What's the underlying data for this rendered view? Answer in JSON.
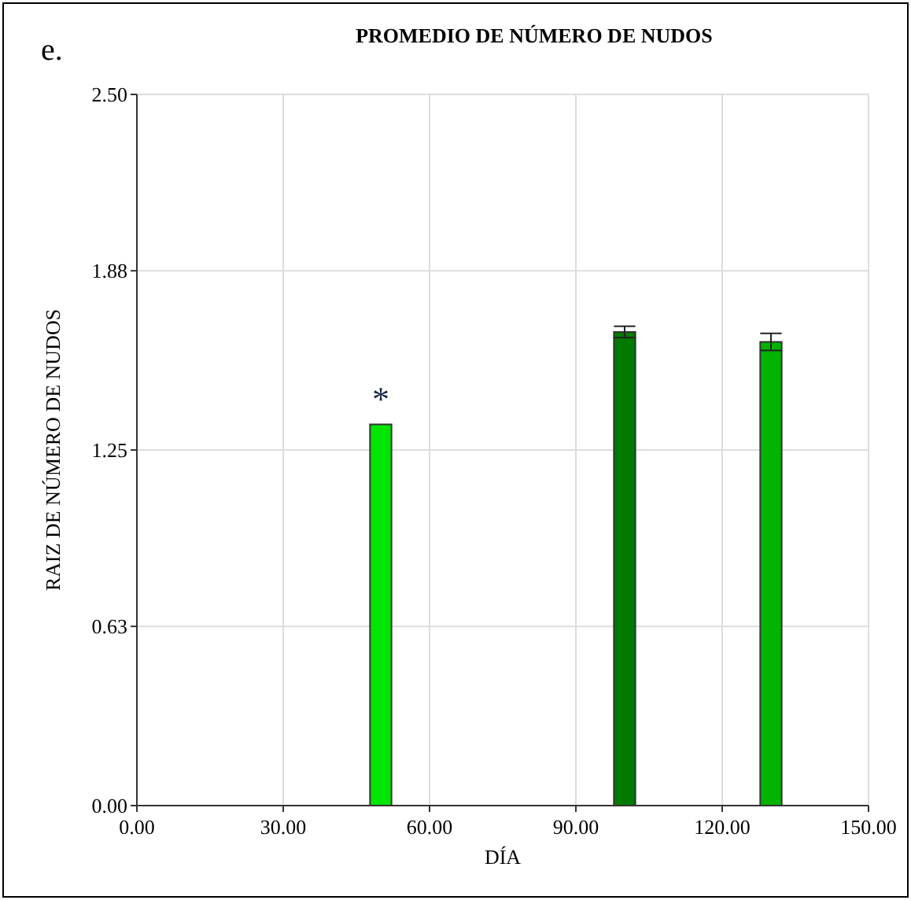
{
  "chart_data": {
    "type": "bar",
    "title": "PROMEDIO DE NÚMERO DE NUDOS",
    "xlabel": "DÍA",
    "ylabel": "RAIZ DE NÚMERO DE NUDOS",
    "annotations": [
      "e.",
      "*"
    ],
    "x": [
      50,
      100,
      130
    ],
    "values": [
      1.34,
      1.665,
      1.63
    ],
    "errors": [
      null,
      0.02,
      0.03
    ],
    "colors": [
      "#00e600",
      "#007a00",
      "#00b400"
    ],
    "xlim": [
      0,
      150
    ],
    "xticks": [
      {
        "value": 0,
        "label": "0.00"
      },
      {
        "value": 30,
        "label": "30.00"
      },
      {
        "value": 60,
        "label": "60.00"
      },
      {
        "value": 90,
        "label": "90.00"
      },
      {
        "value": 120,
        "label": "120.00"
      },
      {
        "value": 150,
        "label": "150.00"
      }
    ],
    "ylim": [
      0,
      2.5
    ],
    "yticks": [
      {
        "value": 0,
        "label": "0.00"
      },
      {
        "value": 0.63,
        "label": "0.63"
      },
      {
        "value": 1.25,
        "label": "1.25"
      },
      {
        "value": 1.88,
        "label": "1.88"
      },
      {
        "value": 2.5,
        "label": "2.50"
      }
    ],
    "grid": true
  }
}
